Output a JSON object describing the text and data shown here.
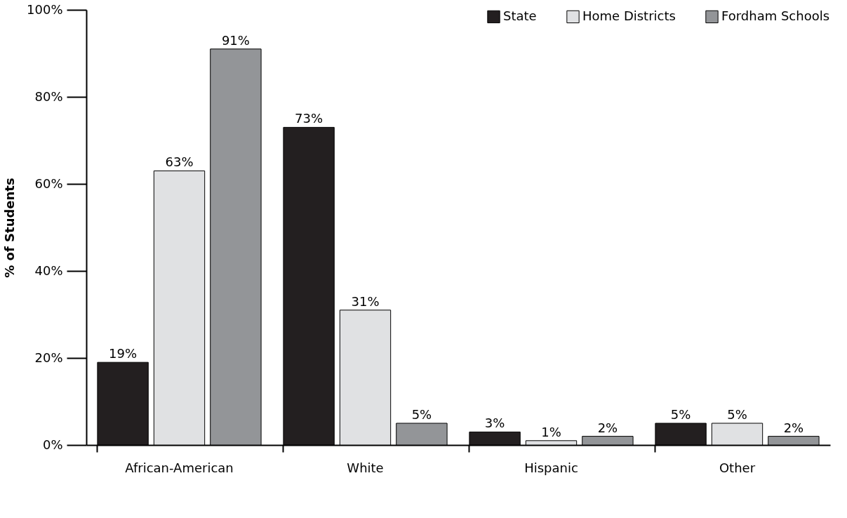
{
  "chart_data": {
    "type": "bar",
    "ylabel": "% of Students",
    "categories": [
      "African-American",
      "White",
      "Hispanic",
      "Other"
    ],
    "series": [
      {
        "name": "State",
        "color": "#231f20",
        "values": [
          19,
          73,
          3,
          5
        ]
      },
      {
        "name": "Home Districts",
        "color": "#e0e1e3",
        "values": [
          63,
          31,
          1,
          5
        ]
      },
      {
        "name": "Fordham Schools",
        "color": "#939598",
        "values": [
          91,
          5,
          2,
          2
        ]
      }
    ],
    "ylim": [
      0,
      100
    ],
    "yticks": [
      {
        "value": 0,
        "label": "0%"
      },
      {
        "value": 20,
        "label": "20%"
      },
      {
        "value": 40,
        "label": "40%"
      },
      {
        "value": 60,
        "label": "60%"
      },
      {
        "value": 80,
        "label": "80%"
      },
      {
        "value": 100,
        "label": "100%"
      }
    ],
    "value_labels": [
      [
        "19%",
        "73%",
        "3%",
        "5%"
      ],
      [
        "63%",
        "31%",
        "1%",
        "5%"
      ],
      [
        "91%",
        "5%",
        "2%",
        "2%"
      ]
    ],
    "grid": false,
    "legend": "top right"
  }
}
